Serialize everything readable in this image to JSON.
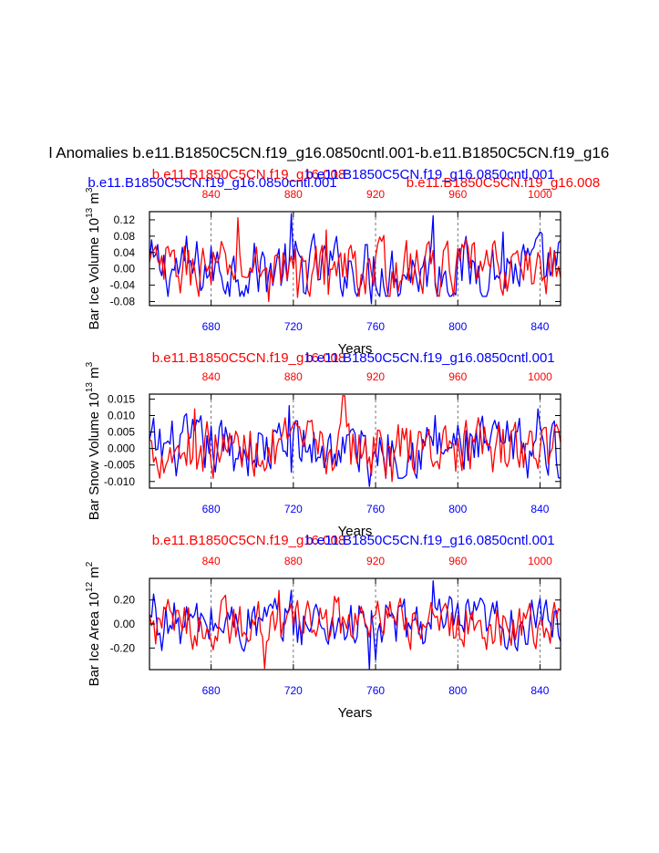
{
  "figure": {
    "main_title": "l Anomalies b.e11.B1850C5CN.f19_g16.0850cntl.001-b.e11.B1850C5CN.f19_g16",
    "top_labels": {
      "blue": "b.e11.B1850C5CN.f19_g16.0850cntl.001",
      "red": "b.e11.B1850C5CN.f19_g16.008"
    }
  },
  "colors": {
    "blue": "#0000ff",
    "red": "#ff0000",
    "axis": "#000000",
    "grid": "#555555"
  },
  "chart_data": [
    {
      "type": "line",
      "id": "ice_volume",
      "ylabel_main": "Bar Ice Volume 10",
      "ylabel_exp": "13",
      "ylabel_unit": " m",
      "ylabel_unit_exp": "3",
      "xlabel": "Years",
      "title_red": "b.e11.B1850C5CN.f19_g16.008",
      "title_blue": "b.e11.B1850C5CN.f19_g16.0850cntl.001",
      "ylim": [
        -0.09,
        0.14
      ],
      "yticks": [
        0.12,
        0.08,
        0.04,
        0.0,
        -0.04,
        -0.08
      ],
      "ytick_labels": [
        "0.12",
        "0.08",
        "0.04",
        "0.00",
        "-0.04",
        "-0.08"
      ],
      "x_bottom": {
        "range": [
          650,
          850
        ],
        "ticks": [
          680,
          720,
          760,
          800,
          840
        ]
      },
      "x_top": {
        "range": [
          810,
          1010
        ],
        "ticks": [
          840,
          880,
          920,
          960,
          1000
        ]
      },
      "vlines": [
        680,
        720,
        760,
        800,
        840
      ],
      "series": [
        {
          "name": "b.e11.B1850C5CN.f19_g16.0850cntl.001",
          "color": "blue",
          "axis": "bottom",
          "x_start": 650,
          "amp": 0.045,
          "min": -0.09,
          "max": 0.14,
          "peaks": [
            [
              719,
              0.135
            ],
            [
              788,
              0.13
            ],
            [
              758,
              -0.085
            ],
            [
              822,
              0.09
            ],
            [
              668,
              0.08
            ],
            [
              839,
              0.08
            ]
          ]
        },
        {
          "name": "b.e11.B1850C5CN.f19_g16.008",
          "color": "red",
          "axis": "top",
          "x_start": 810,
          "amp": 0.04,
          "min": -0.09,
          "max": 0.14,
          "peaks": [
            [
              853,
              0.125
            ],
            [
              868,
              -0.08
            ],
            [
              896,
              0.095
            ],
            [
              882,
              -0.07
            ],
            [
              999,
              0.04
            ]
          ]
        }
      ]
    },
    {
      "type": "line",
      "id": "snow_volume",
      "ylabel_main": "Bar Snow Volume 10",
      "ylabel_exp": "13",
      "ylabel_unit": " m",
      "ylabel_unit_exp": "3",
      "xlabel": "Years",
      "title_red": "b.e11.B1850C5CN.f19_g16.008",
      "title_blue": "b.e11.B1850C5CN.f19_g16.0850cntl.001",
      "ylim": [
        -0.012,
        0.0165
      ],
      "yticks": [
        0.015,
        0.01,
        0.005,
        0.0,
        -0.005,
        -0.01
      ],
      "ytick_labels": [
        "0.015",
        "0.010",
        "0.005",
        "0.000",
        "-0.005",
        "-0.010"
      ],
      "x_bottom": {
        "range": [
          650,
          850
        ],
        "ticks": [
          680,
          720,
          760,
          800,
          840
        ]
      },
      "x_top": {
        "range": [
          810,
          1010
        ],
        "ticks": [
          840,
          880,
          920,
          960,
          1000
        ]
      },
      "vlines": [
        680,
        720,
        760,
        800,
        840
      ],
      "series": [
        {
          "name": "b.e11.B1850C5CN.f19_g16.0850cntl.001",
          "color": "blue",
          "axis": "bottom",
          "x_start": 650,
          "amp": 0.0055,
          "min": -0.012,
          "max": 0.0165,
          "peaks": [
            [
              757,
              -0.0115
            ],
            [
              718,
              0.013
            ],
            [
              789,
              0.01
            ],
            [
              839,
              0.012
            ],
            [
              765,
              -0.009
            ]
          ]
        },
        {
          "name": "b.e11.B1850C5CN.f19_g16.008",
          "color": "red",
          "axis": "top",
          "x_start": 810,
          "amp": 0.005,
          "min": -0.012,
          "max": 0.0165,
          "peaks": [
            [
              904,
              0.016
            ],
            [
              904.5,
              0.016
            ],
            [
              832,
              0.012
            ],
            [
              928,
              -0.01
            ]
          ]
        }
      ]
    },
    {
      "type": "line",
      "id": "ice_area",
      "ylabel_main": "Bar Ice Area 10",
      "ylabel_exp": "12",
      "ylabel_unit": " m",
      "ylabel_unit_exp": "2",
      "xlabel": "Years",
      "title_red": "b.e11.B1850C5CN.f19_g16.008",
      "title_blue": "b.e11.B1850C5CN.f19_g16.0850cntl.001",
      "ylim": [
        -0.38,
        0.38
      ],
      "yticks": [
        0.2,
        0.0,
        -0.2
      ],
      "ytick_labels": [
        "0.20",
        "0.00",
        "-0.20"
      ],
      "x_bottom": {
        "range": [
          650,
          850
        ],
        "ticks": [
          680,
          720,
          760,
          800,
          840
        ]
      },
      "x_top": {
        "range": [
          810,
          1010
        ],
        "ticks": [
          840,
          880,
          920,
          960,
          1000
        ]
      },
      "vlines": [
        680,
        720,
        760,
        800,
        840
      ],
      "series": [
        {
          "name": "b.e11.B1850C5CN.f19_g16.0850cntl.001",
          "color": "blue",
          "axis": "bottom",
          "x_start": 650,
          "amp": 0.13,
          "min": -0.38,
          "max": 0.38,
          "peaks": [
            [
              788,
              0.36
            ],
            [
              757,
              -0.38
            ],
            [
              719,
              0.28
            ],
            [
              652,
              0.25
            ],
            [
              760,
              -0.3
            ]
          ]
        },
        {
          "name": "b.e11.B1850C5CN.f19_g16.008",
          "color": "red",
          "axis": "top",
          "x_start": 810,
          "amp": 0.12,
          "min": -0.38,
          "max": 0.38,
          "peaks": [
            [
              866,
              -0.37
            ],
            [
              873,
              0.28
            ],
            [
              900,
              0.23
            ],
            [
              847,
              0.24
            ]
          ]
        }
      ]
    }
  ]
}
